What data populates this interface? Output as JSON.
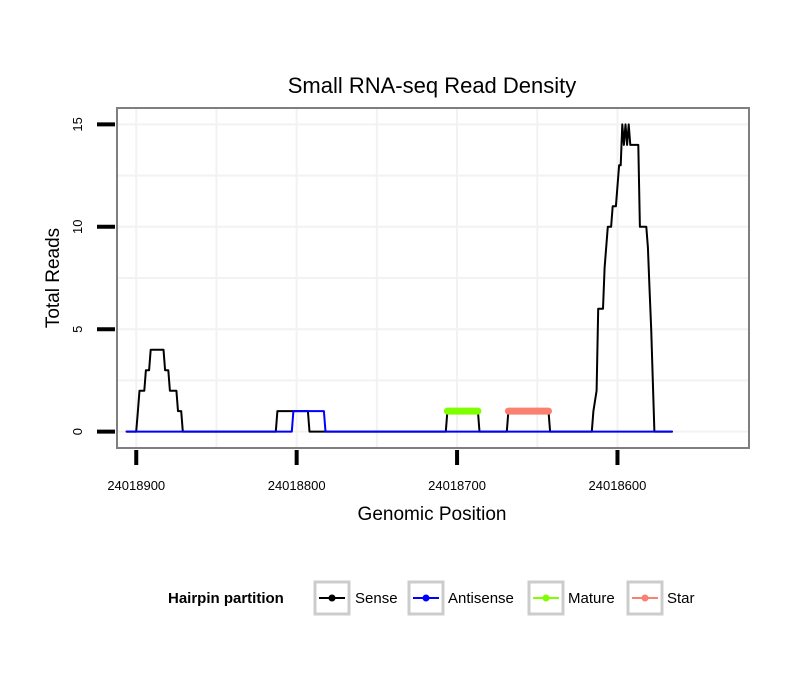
{
  "chart_data": {
    "type": "line",
    "title": "Small RNA-seq Read Density",
    "xlabel": "Genomic Position",
    "ylabel": "Total Reads",
    "x_reversed": true,
    "xlim": [
      24018912,
      24018518
    ],
    "ylim": [
      -0.8,
      15.8
    ],
    "x_ticks": [
      24018900,
      24018800,
      24018700,
      24018600
    ],
    "x_tick_labels": [
      "24018900",
      "24018800",
      "24018700",
      "24018600"
    ],
    "y_ticks": [
      0,
      5,
      10,
      15
    ],
    "y_tick_labels": [
      "0",
      "5",
      "10",
      "15"
    ],
    "grid": true,
    "legend": {
      "title": "Hairpin partition",
      "position": "bottom",
      "entries": [
        {
          "name": "Sense",
          "color": "#000000"
        },
        {
          "name": "Antisense",
          "color": "#0000ff"
        },
        {
          "name": "Mature",
          "color": "#7fff00"
        },
        {
          "name": "Star",
          "color": "#fa8072"
        }
      ]
    },
    "series": [
      {
        "name": "Sense",
        "color": "#000000",
        "width": 2,
        "points": [
          [
            24018906,
            0
          ],
          [
            24018900,
            0
          ],
          [
            24018899,
            1
          ],
          [
            24018898,
            2
          ],
          [
            24018895,
            2
          ],
          [
            24018894,
            3
          ],
          [
            24018892,
            3
          ],
          [
            24018891,
            4
          ],
          [
            24018883,
            4
          ],
          [
            24018882,
            3
          ],
          [
            24018880,
            3
          ],
          [
            24018879,
            2
          ],
          [
            24018875,
            2
          ],
          [
            24018874,
            1
          ],
          [
            24018872,
            1
          ],
          [
            24018871,
            0
          ],
          [
            24018813,
            0
          ],
          [
            24018812,
            1
          ],
          [
            24018793,
            1
          ],
          [
            24018792,
            0
          ],
          [
            24018707,
            0
          ],
          [
            24018706,
            1
          ],
          [
            24018687,
            1
          ],
          [
            24018686,
            0
          ],
          [
            24018669,
            0
          ],
          [
            24018668,
            1
          ],
          [
            24018643,
            1
          ],
          [
            24018642,
            0
          ],
          [
            24018616,
            0
          ],
          [
            24018615,
            1
          ],
          [
            24018614,
            1.5
          ],
          [
            24018613,
            2
          ],
          [
            24018612,
            6
          ],
          [
            24018609,
            6
          ],
          [
            24018608,
            8
          ],
          [
            24018607,
            9
          ],
          [
            24018606,
            10
          ],
          [
            24018604,
            10
          ],
          [
            24018603,
            11
          ],
          [
            24018601,
            11
          ],
          [
            24018600,
            12
          ],
          [
            24018599,
            13
          ],
          [
            24018598,
            13
          ],
          [
            24018597,
            15
          ],
          [
            24018596,
            14
          ],
          [
            24018595,
            15
          ],
          [
            24018594,
            14
          ],
          [
            24018593,
            15
          ],
          [
            24018592,
            14
          ],
          [
            24018587,
            14
          ],
          [
            24018586,
            10
          ],
          [
            24018582,
            10
          ],
          [
            24018581,
            9
          ],
          [
            24018580,
            7
          ],
          [
            24018579,
            5
          ],
          [
            24018577,
            0
          ],
          [
            24018566,
            0
          ]
        ]
      },
      {
        "name": "Antisense",
        "color": "#0000ff",
        "width": 2,
        "points": [
          [
            24018906,
            0
          ],
          [
            24018803,
            0
          ],
          [
            24018802,
            1
          ],
          [
            24018783,
            1
          ],
          [
            24018782,
            0
          ],
          [
            24018566,
            0
          ]
        ]
      },
      {
        "name": "Mature",
        "color": "#7fff00",
        "width": 7,
        "points": [
          [
            24018706,
            1
          ],
          [
            24018687,
            1
          ]
        ]
      },
      {
        "name": "Star",
        "color": "#fa8072",
        "width": 7,
        "points": [
          [
            24018668,
            1
          ],
          [
            24018643,
            1
          ]
        ]
      }
    ]
  }
}
